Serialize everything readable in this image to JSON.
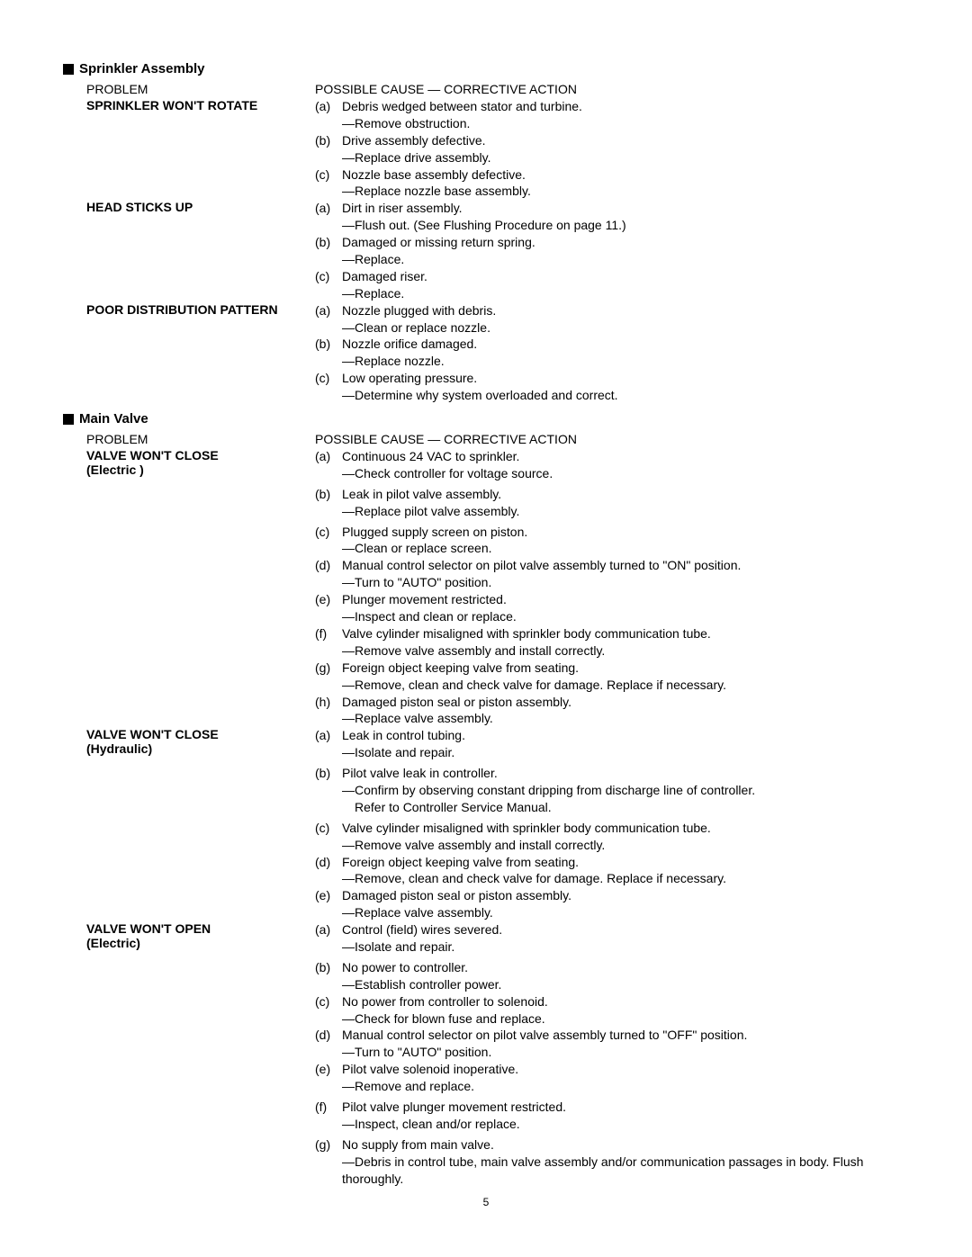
{
  "page_number": "5",
  "sections": [
    {
      "title": "Sprinkler Assembly",
      "header_problem": "PROBLEM",
      "header_cause": "POSSIBLE CAUSE — CORRECTIVE ACTION",
      "problems": [
        {
          "label_lines": [
            "SPRINKLER WON'T ROTATE"
          ],
          "causes": [
            {
              "letter": "(a)",
              "cause": "Debris wedged between stator and turbine.",
              "corrective": "—Remove obstruction."
            },
            {
              "letter": "(b)",
              "cause": "Drive assembly defective.",
              "corrective": "—Replace drive assembly."
            },
            {
              "letter": "(c)",
              "cause": "Nozzle base assembly defective.",
              "corrective": "—Replace nozzle base assembly."
            }
          ]
        },
        {
          "label_lines": [
            "HEAD STICKS UP"
          ],
          "causes": [
            {
              "letter": "(a)",
              "cause": "Dirt in riser assembly.",
              "corrective": "—Flush out. (See Flushing Procedure on page 11.)"
            },
            {
              "letter": "(b)",
              "cause": "Damaged or missing return spring.",
              "corrective": "—Replace."
            },
            {
              "letter": "(c)",
              "cause": "Damaged riser.",
              "corrective": "—Replace."
            }
          ]
        },
        {
          "label_lines": [
            "POOR DISTRIBUTION PATTERN"
          ],
          "causes": [
            {
              "letter": "(a)",
              "cause": "Nozzle plugged with debris.",
              "corrective": "—Clean or replace nozzle."
            },
            {
              "letter": "(b)",
              "cause": "Nozzle orifice damaged.",
              "corrective": "—Replace nozzle."
            },
            {
              "letter": "(c)",
              "cause": "Low operating pressure.",
              "corrective": "—Determine why system overloaded and correct."
            }
          ]
        }
      ]
    },
    {
      "title": "Main Valve",
      "header_problem": "PROBLEM",
      "header_cause": "POSSIBLE CAUSE — CORRECTIVE ACTION",
      "problems": [
        {
          "label_lines": [
            "VALVE WON'T CLOSE",
            "(Electric )"
          ],
          "causes": [
            {
              "letter": "(a)",
              "cause": "Continuous 24 VAC to sprinkler.",
              "corrective": "—Check controller for voltage source.",
              "spaced": true
            },
            {
              "letter": "(b)",
              "cause": "Leak in pilot valve assembly.",
              "corrective": "—Replace pilot valve assembly.",
              "spaced": true
            },
            {
              "letter": "(c)",
              "cause": "Plugged supply screen on piston.",
              "corrective": "—Clean or replace screen."
            },
            {
              "letter": "(d)",
              "cause": "Manual control selector on pilot valve assembly turned to \"ON\" position.",
              "corrective": "—Turn to \"AUTO\" position."
            },
            {
              "letter": "(e)",
              "cause": "Plunger movement restricted.",
              "corrective": "—Inspect and clean or replace."
            },
            {
              "letter": "(f)",
              "cause": "Valve cylinder misaligned with sprinkler body communication tube.",
              "corrective": "—Remove valve assembly and install correctly."
            },
            {
              "letter": "(g)",
              "cause": "Foreign object keeping valve from seating.",
              "corrective": "—Remove, clean and check valve for damage. Replace if necessary."
            },
            {
              "letter": "(h)",
              "cause": "Damaged piston seal or piston assembly.",
              "corrective": "—Replace valve assembly."
            }
          ]
        },
        {
          "label_lines": [
            "VALVE WON'T CLOSE",
            "(Hydraulic)"
          ],
          "causes": [
            {
              "letter": "(a)",
              "cause": "Leak in control tubing.",
              "corrective": "—Isolate and repair.",
              "spaced": true
            },
            {
              "letter": "(b)",
              "cause": "Pilot valve leak in controller.",
              "corrective": "—Confirm by observing constant dripping from discharge line of controller.",
              "corrective2": "Refer to Controller Service Manual.",
              "spaced": true
            },
            {
              "letter": "(c)",
              "cause": "Valve cylinder misaligned with sprinkler body communication tube.",
              "corrective": "—Remove valve assembly and install correctly."
            },
            {
              "letter": "(d)",
              "cause": "Foreign object keeping valve from seating.",
              "corrective": "—Remove, clean and check valve for damage. Replace if necessary."
            },
            {
              "letter": "(e)",
              "cause": "Damaged piston seal or piston assembly.",
              "corrective": "—Replace valve assembly."
            }
          ]
        },
        {
          "label_lines": [
            "VALVE WON'T OPEN",
            "(Electric)"
          ],
          "causes": [
            {
              "letter": "(a)",
              "cause": "Control (field) wires severed.",
              "corrective": "—Isolate and repair.",
              "spaced": true
            },
            {
              "letter": "(b)",
              "cause": "No power to controller.",
              "corrective": "—Establish controller power."
            },
            {
              "letter": "(c)",
              "cause": "No power from controller to solenoid.",
              "corrective": "—Check for blown fuse and replace."
            },
            {
              "letter": "(d)",
              "cause": "Manual control selector on pilot valve assembly turned to \"OFF\" position.",
              "corrective": "—Turn to \"AUTO\" position."
            },
            {
              "letter": "(e)",
              "cause": "Pilot valve solenoid inoperative.",
              "corrective": " —Remove and replace.",
              "spaced": true
            },
            {
              "letter": "(f)",
              "cause": "Pilot valve plunger movement restricted.",
              "corrective": " —Inspect, clean and/or replace.",
              "spaced": true
            },
            {
              "letter": "(g)",
              "cause": "No supply from main valve.",
              "corrective": "—Debris in control tube, main valve assembly and/or communication passages in body. Flush thoroughly."
            }
          ]
        }
      ]
    }
  ]
}
